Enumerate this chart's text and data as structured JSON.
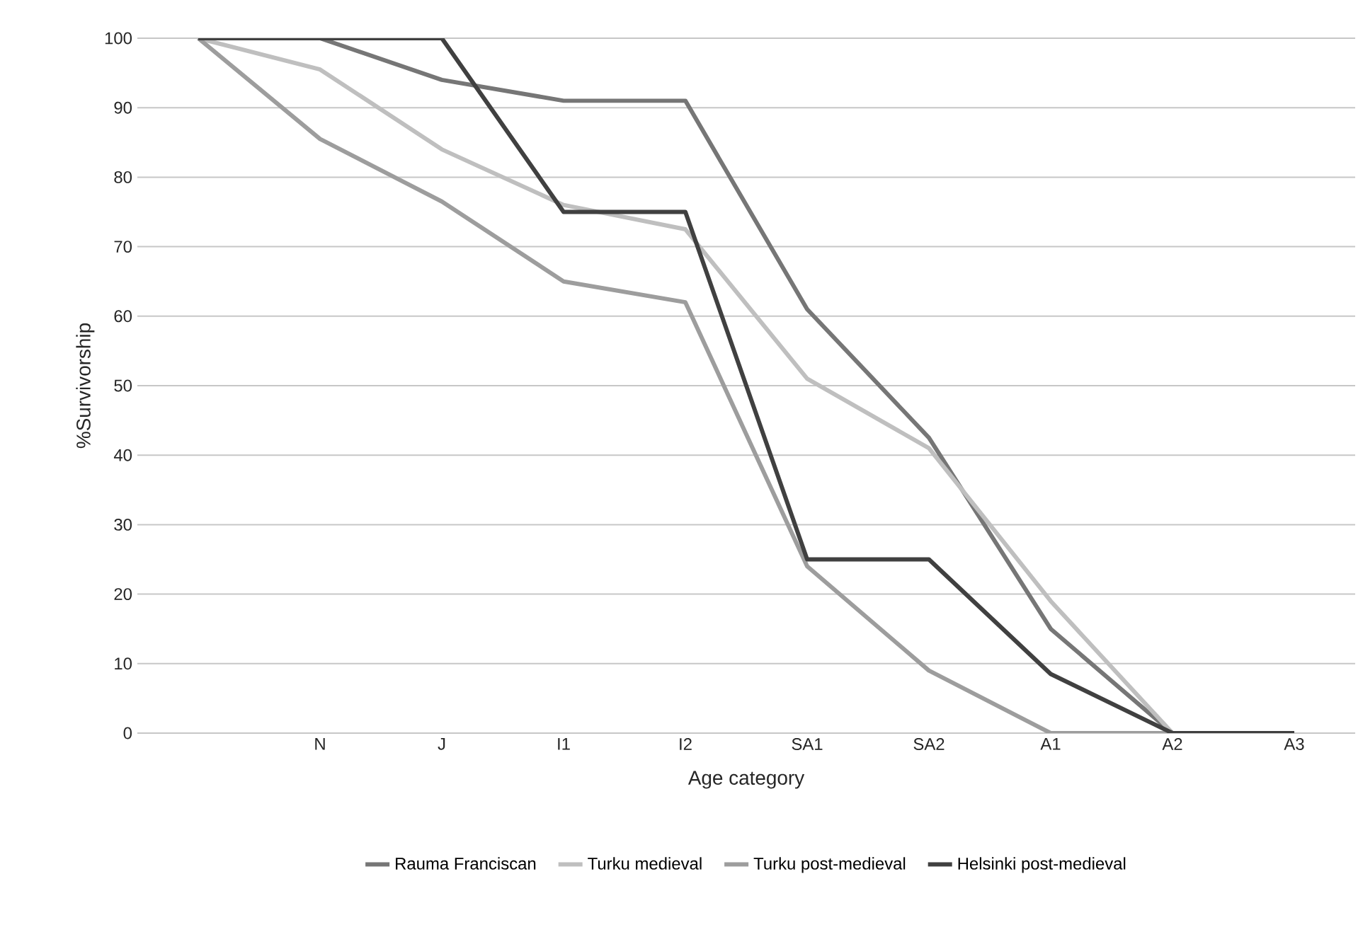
{
  "chart_data": {
    "type": "line",
    "xlabel": "Age category",
    "ylabel": "%Survivorship",
    "categories": [
      null,
      "N",
      "J",
      "I1",
      "I2",
      "SA1",
      "SA2",
      "A1",
      "A2",
      "A3"
    ],
    "series": [
      {
        "name": "Rauma Franciscan",
        "color": "#767676",
        "values": [
          100,
          100,
          94,
          91,
          91,
          61,
          42.5,
          15,
          0,
          0
        ]
      },
      {
        "name": "Turku medieval",
        "color": "#bfbfbf",
        "values": [
          100,
          95.5,
          84,
          76,
          72.5,
          51,
          41,
          19,
          0,
          0
        ]
      },
      {
        "name": "Turku post-medieval",
        "color": "#9d9d9d",
        "values": [
          100,
          85.5,
          76.5,
          65,
          62,
          24,
          9,
          0,
          0,
          0
        ]
      },
      {
        "name": "Helsinki post-medieval",
        "color": "#404040",
        "values": [
          100,
          100,
          100,
          75,
          75,
          25,
          25,
          8.5,
          0,
          0
        ]
      }
    ],
    "ylim": [
      0,
      100
    ],
    "yticks": [
      0,
      10,
      20,
      30,
      40,
      50,
      60,
      70,
      80,
      90,
      100
    ],
    "grid": "y",
    "legend": "bottom"
  }
}
